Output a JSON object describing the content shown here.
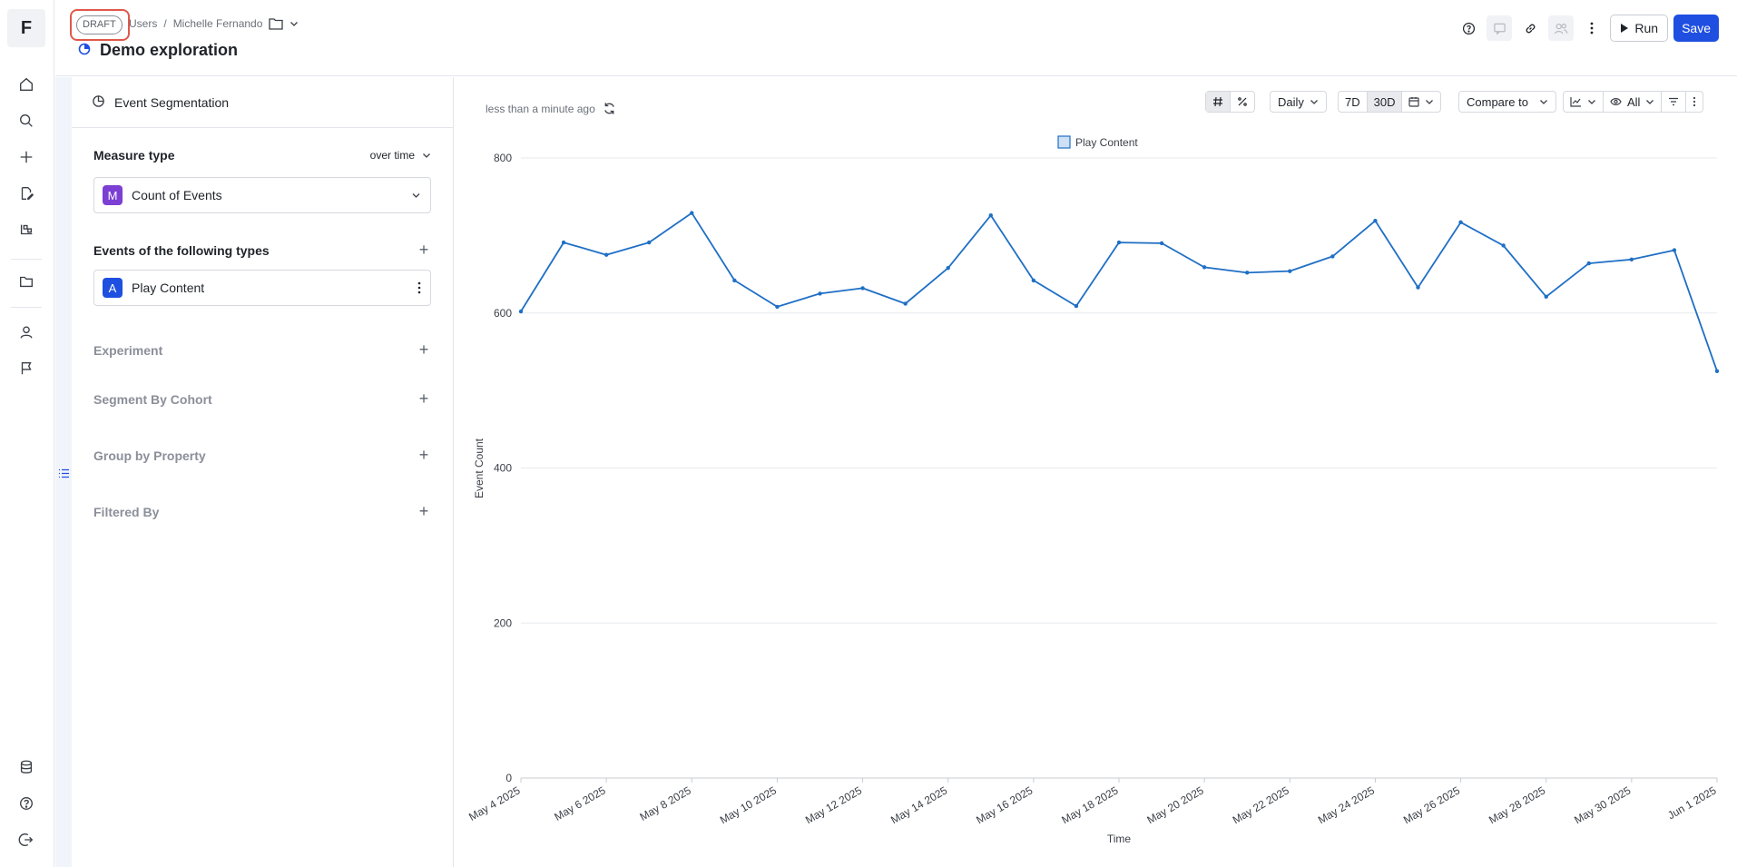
{
  "app": {
    "logo_letter": "F"
  },
  "header": {
    "draft": "DRAFT",
    "breadcrumb": [
      "Users",
      "Michelle Fernando"
    ],
    "title": "Demo exploration",
    "run_label": "Run",
    "save_label": "Save"
  },
  "panel": {
    "header": "Event Segmentation",
    "measure_type_label": "Measure type",
    "measure_mode": "over time",
    "measure": {
      "badge": "M",
      "label": "Count of Events",
      "color": "#7b3fd4"
    },
    "events_label": "Events of the following types",
    "event": {
      "badge": "A",
      "label": "Play Content",
      "color": "#1f4fe0"
    },
    "sections": [
      "Experiment",
      "Segment By Cohort",
      "Group by Property",
      "Filtered By"
    ]
  },
  "toolbar": {
    "updated": "less than a minute ago",
    "interval": "Daily",
    "range_7d": "7D",
    "range_30d": "30D",
    "compare": "Compare to",
    "visibility": "All"
  },
  "chart_data": {
    "type": "line",
    "title": "",
    "xlabel": "Time",
    "ylabel": "Event Count",
    "ylim": [
      0,
      800
    ],
    "yticks": [
      0,
      200,
      400,
      600,
      800
    ],
    "grid": true,
    "legend_position": "top-center",
    "x_tick_labels": [
      "May 4 2025",
      "May 6 2025",
      "May 8 2025",
      "May 10 2025",
      "May 12 2025",
      "May 14 2025",
      "May 16 2025",
      "May 18 2025",
      "May 20 2025",
      "May 22 2025",
      "May 24 2025",
      "May 26 2025",
      "May 28 2025",
      "May 30 2025",
      "Jun 1 2025"
    ],
    "x": [
      "2025-05-04",
      "2025-05-05",
      "2025-05-06",
      "2025-05-07",
      "2025-05-08",
      "2025-05-09",
      "2025-05-10",
      "2025-05-11",
      "2025-05-12",
      "2025-05-13",
      "2025-05-14",
      "2025-05-15",
      "2025-05-16",
      "2025-05-17",
      "2025-05-18",
      "2025-05-19",
      "2025-05-20",
      "2025-05-21",
      "2025-05-22",
      "2025-05-23",
      "2025-05-24",
      "2025-05-25",
      "2025-05-26",
      "2025-05-27",
      "2025-05-28",
      "2025-05-29",
      "2025-05-30",
      "2025-05-31",
      "2025-06-01"
    ],
    "series": [
      {
        "name": "Play Content",
        "color": "#1f6fc5",
        "values": [
          602,
          691,
          675,
          691,
          729,
          642,
          608,
          625,
          632,
          612,
          658,
          726,
          642,
          609,
          691,
          690,
          659,
          652,
          654,
          673,
          719,
          633,
          717,
          687,
          621,
          664,
          669,
          681,
          525
        ]
      }
    ]
  }
}
